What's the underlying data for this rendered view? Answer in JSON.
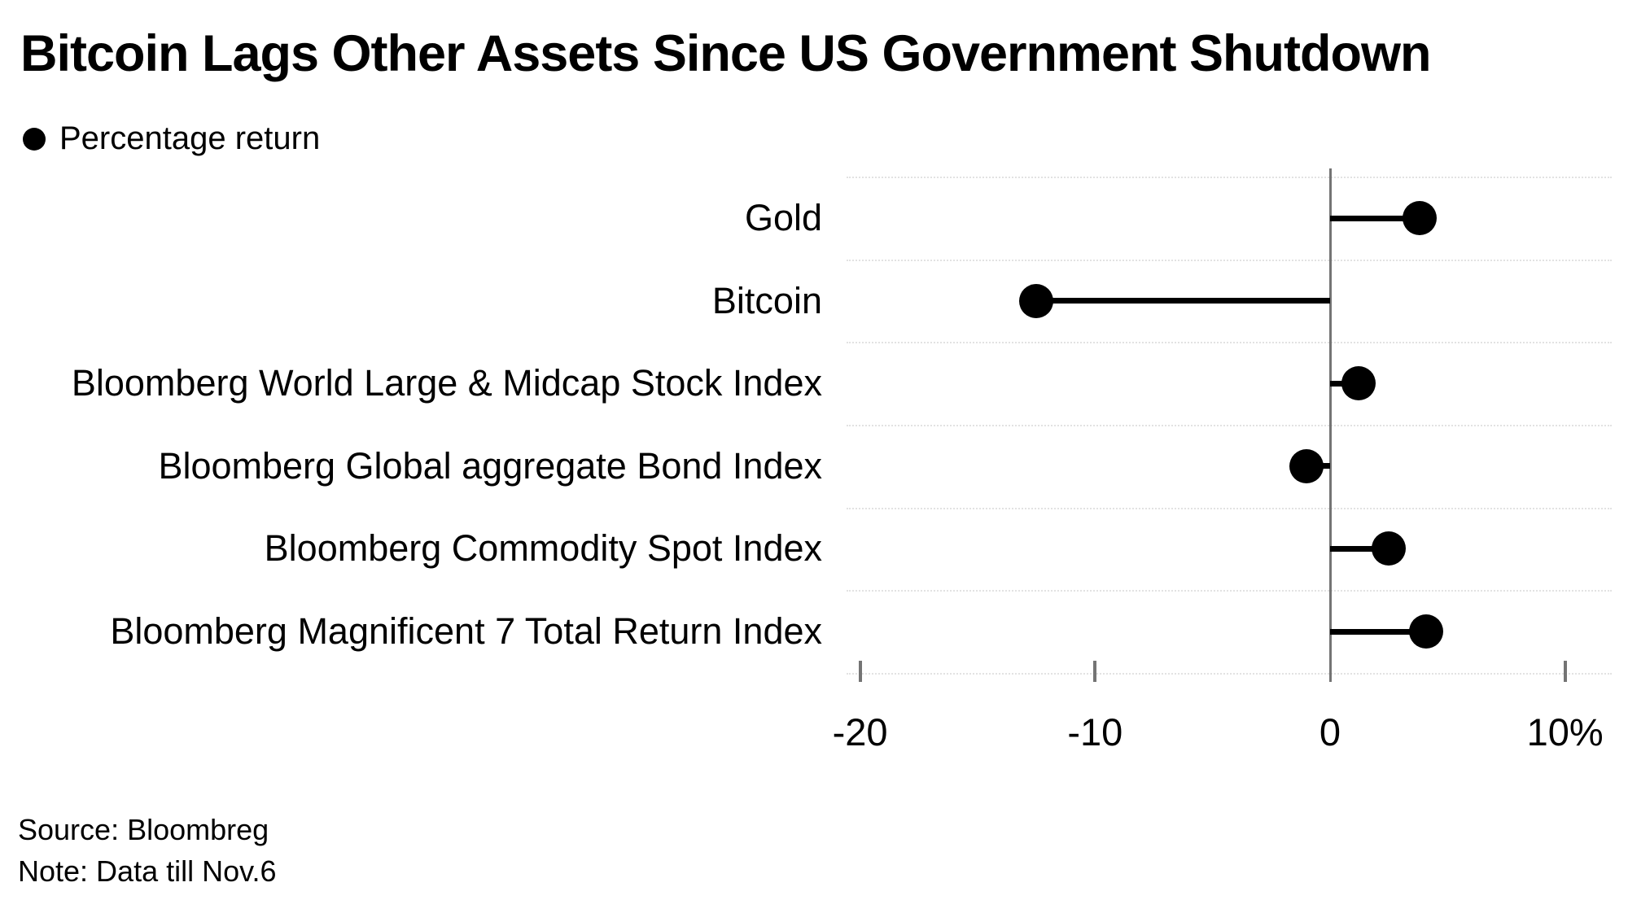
{
  "title": "Bitcoin Lags Other Assets Since US Government Shutdown",
  "legend": {
    "marker": "black-dot",
    "label": "Percentage return"
  },
  "footer": {
    "source_line": "Source: Bloombreg",
    "note_line": "Note: Data till Nov.6"
  },
  "chart_data": {
    "type": "scatter",
    "subtype": "lollipop-dot-plot",
    "orientation": "horizontal",
    "series_name": "Percentage return",
    "categories": [
      "Gold",
      "Bitcoin",
      "Bloomberg World Large & Midcap Stock Index",
      "Bloomberg Global aggregate Bond Index",
      "Bloomberg Commodity Spot Index",
      "Bloomberg Magnificent 7 Total Return Index"
    ],
    "values": [
      3.8,
      -12.5,
      1.2,
      -1.0,
      2.5,
      4.1
    ],
    "unit": "%",
    "baseline": 0,
    "xlim": [
      -22,
      11.5
    ],
    "x_ticks": [
      -20,
      -10,
      0,
      10
    ],
    "x_tick_labels": [
      "-20",
      "-10",
      "0",
      "10%"
    ],
    "xlabel": "",
    "ylabel": "",
    "grid": "faint dotted horizontal row separators",
    "legend_position": "top-left",
    "dot_color": "#000000",
    "stem_color": "#000000",
    "axis_color": "#747474",
    "background_color": "#ffffff"
  }
}
